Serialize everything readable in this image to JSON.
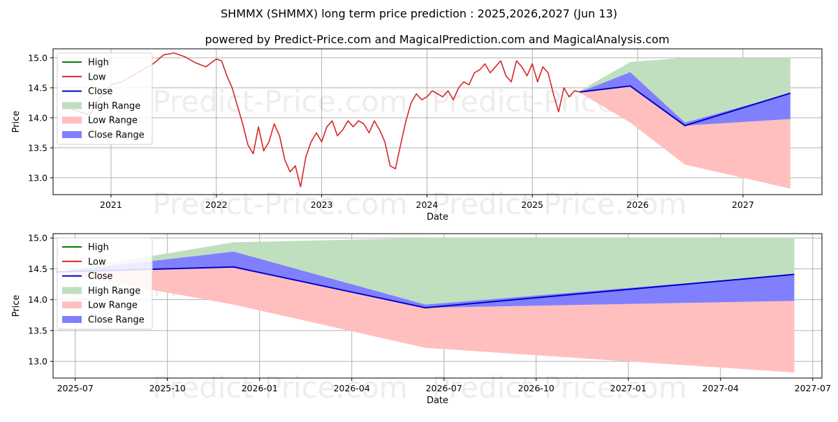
{
  "title": "SHMMX (SHMMX) long term price prediction : 2025,2026,2027 (Jun 13)",
  "subtitle": "powered by Predict-Price.com and MagicalPrediction.com and MagicalAnalysis.com",
  "watermark": "Predict-Price.com",
  "colors": {
    "high": "#008000",
    "low": "#d62728",
    "close": "#0000cc",
    "high_range": "#bfdfbf",
    "low_range": "#ffbfbf",
    "close_range": "#8080ff"
  },
  "legend": [
    "High",
    "Low",
    "Close",
    "High Range",
    "Low Range",
    "Close Range"
  ],
  "chart_data": [
    {
      "type": "line",
      "name": "full-history",
      "xlabel": "Date",
      "ylabel": "Price",
      "xlim": [
        2020.45,
        2027.75
      ],
      "ylim": [
        12.72,
        15.15
      ],
      "xticks": [
        2021,
        2022,
        2023,
        2024,
        2025,
        2026,
        2027
      ],
      "xtick_labels": [
        "2021",
        "2022",
        "2023",
        "2024",
        "2025",
        "2026",
        "2027"
      ],
      "yticks": [
        13.0,
        13.5,
        14.0,
        14.5,
        15.0
      ],
      "ytick_labels": [
        "13.0",
        "13.5",
        "14.0",
        "14.5",
        "15.0"
      ],
      "legend_position": "top-left",
      "history_low": {
        "x": [
          2020.62,
          2020.7,
          2020.8,
          2020.9,
          2021.0,
          2021.1,
          2021.2,
          2021.3,
          2021.4,
          2021.5,
          2021.6,
          2021.7,
          2021.8,
          2021.9,
          2022.0,
          2022.05,
          2022.1,
          2022.15,
          2022.2,
          2022.25,
          2022.3,
          2022.35,
          2022.4,
          2022.45,
          2022.5,
          2022.55,
          2022.6,
          2022.65,
          2022.7,
          2022.75,
          2022.8,
          2022.85,
          2022.9,
          2022.95,
          2023.0,
          2023.05,
          2023.1,
          2023.15,
          2023.2,
          2023.25,
          2023.3,
          2023.35,
          2023.4,
          2023.45,
          2023.5,
          2023.55,
          2023.6,
          2023.65,
          2023.7,
          2023.75,
          2023.8,
          2023.85,
          2023.9,
          2023.95,
          2024.0,
          2024.05,
          2024.1,
          2024.15,
          2024.2,
          2024.25,
          2024.3,
          2024.35,
          2024.4,
          2024.45,
          2024.5,
          2024.55,
          2024.6,
          2024.65,
          2024.7,
          2024.75,
          2024.8,
          2024.85,
          2024.9,
          2024.95,
          2025.0,
          2025.05,
          2025.1,
          2025.15,
          2025.2,
          2025.25,
          2025.3,
          2025.35,
          2025.4,
          2025.45
        ],
        "values": [
          14.15,
          14.1,
          14.05,
          14.35,
          14.55,
          14.6,
          14.7,
          14.8,
          14.9,
          15.05,
          15.08,
          15.02,
          14.92,
          14.85,
          14.98,
          14.95,
          14.7,
          14.5,
          14.2,
          13.9,
          13.55,
          13.4,
          13.85,
          13.45,
          13.6,
          13.9,
          13.7,
          13.3,
          13.1,
          13.2,
          12.85,
          13.35,
          13.6,
          13.75,
          13.6,
          13.85,
          13.95,
          13.7,
          13.8,
          13.95,
          13.85,
          13.95,
          13.9,
          13.75,
          13.95,
          13.8,
          13.6,
          13.2,
          13.15,
          13.55,
          13.95,
          14.25,
          14.4,
          14.3,
          14.35,
          14.45,
          14.4,
          14.35,
          14.45,
          14.3,
          14.5,
          14.6,
          14.55,
          14.75,
          14.8,
          14.9,
          14.75,
          14.85,
          14.95,
          14.7,
          14.6,
          14.95,
          14.85,
          14.7,
          14.9,
          14.6,
          14.85,
          14.75,
          14.4,
          14.1,
          14.5,
          14.35,
          14.45,
          14.43
        ]
      },
      "prediction_x": [
        2025.45,
        2025.93,
        2026.45,
        2027.45
      ],
      "close": [
        14.43,
        14.53,
        13.87,
        14.41
      ],
      "high_range": {
        "upper": [
          14.45,
          14.93,
          15.0,
          15.0
        ],
        "lower": [
          14.43,
          14.76,
          13.92,
          14.41
        ]
      },
      "low_range": {
        "upper": [
          14.43,
          14.53,
          13.87,
          13.98
        ],
        "lower": [
          14.42,
          13.92,
          13.22,
          12.82
        ]
      },
      "close_range": {
        "upper": [
          14.43,
          14.76,
          13.92,
          14.41
        ],
        "lower": [
          14.43,
          14.53,
          13.87,
          13.98
        ]
      }
    },
    {
      "type": "line",
      "name": "prediction-zoom",
      "xlabel": "Date",
      "ylabel": "Price",
      "xlim": [
        2025.44,
        2027.525
      ],
      "ylim": [
        12.73,
        15.07
      ],
      "xticks": [
        2025.5,
        2025.75,
        2026.0,
        2026.25,
        2026.5,
        2026.75,
        2027.0,
        2027.25,
        2027.5
      ],
      "xtick_labels": [
        "2025-07",
        "2025-10",
        "2026-01",
        "2026-04",
        "2026-07",
        "2026-10",
        "2027-01",
        "2027-04",
        "2027-07"
      ],
      "yticks": [
        13.0,
        13.5,
        14.0,
        14.5,
        15.0
      ],
      "ytick_labels": [
        "13.0",
        "13.5",
        "14.0",
        "14.5",
        "15.0"
      ],
      "legend_position": "top-left",
      "prediction_x": [
        2025.45,
        2025.93,
        2026.45,
        2027.45
      ],
      "close": [
        14.45,
        14.53,
        13.87,
        14.41
      ],
      "high_range": {
        "upper": [
          14.45,
          14.93,
          15.0,
          15.0
        ],
        "lower": [
          14.45,
          14.78,
          13.92,
          14.41
        ]
      },
      "low_range": {
        "upper": [
          14.45,
          14.53,
          13.87,
          13.98
        ],
        "lower": [
          14.44,
          13.92,
          13.22,
          12.82
        ]
      },
      "close_range": {
        "upper": [
          14.45,
          14.78,
          13.92,
          14.41
        ],
        "lower": [
          14.45,
          14.53,
          13.87,
          13.98
        ]
      }
    }
  ]
}
